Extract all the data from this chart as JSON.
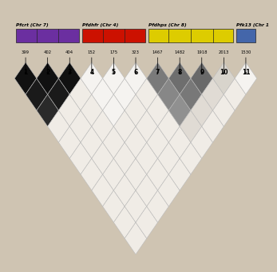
{
  "background_color": "#cfc4b2",
  "n_markers": 11,
  "marker_labels": [
    "1",
    "2",
    "3",
    "4",
    "5",
    "6",
    "7",
    "8",
    "9",
    "10",
    "11"
  ],
  "position_labels": [
    "399",
    "402",
    "404",
    "152",
    "175",
    "323",
    "1467",
    "1482",
    "1918",
    "2013",
    "1530"
  ],
  "genes": [
    {
      "name": "Pfcrt",
      "suffix": " (Chr 7)",
      "color": "#6b2fa0",
      "markers": [
        1,
        2,
        3
      ]
    },
    {
      "name": "Pfdhfr",
      "suffix": " (Chr 4)",
      "color": "#cc1100",
      "markers": [
        4,
        5,
        6
      ]
    },
    {
      "name": "Pfdhps",
      "suffix": " (Chr 8)",
      "color": "#ddcc00",
      "markers": [
        7,
        8,
        9,
        10
      ]
    },
    {
      "name": "Pfk13",
      "suffix": " (Chr 1",
      "color": "#4466aa",
      "markers": [
        11
      ]
    }
  ],
  "ld_colors": [
    [
      "#111111",
      "#1a1a1a",
      "#2a2a2a",
      "#f0ece6",
      "#f0ece6",
      "#f0ece6",
      "#f0ece6",
      "#f0ece6",
      "#f0ece6",
      "#f0ece6",
      "#f0ece6"
    ],
    [
      "#1a1a1a",
      "#111111",
      "#1a1a1a",
      "#f0ece6",
      "#f0ece6",
      "#f0ece6",
      "#f0ece6",
      "#f0ece6",
      "#f0ece6",
      "#f0ece6",
      "#f0ece6"
    ],
    [
      "#2a2a2a",
      "#1a1a1a",
      "#111111",
      "#f0ece6",
      "#f0ece6",
      "#f0ece6",
      "#f0ece6",
      "#f0ece6",
      "#f0ece6",
      "#f0ece6",
      "#f0ece6"
    ],
    [
      "#f0ece6",
      "#f0ece6",
      "#f0ece6",
      "#f5f3f0",
      "#f5f3f0",
      "#f5f3f0",
      "#f0ece6",
      "#f0ece6",
      "#f0ece6",
      "#f0ece6",
      "#f0ece6"
    ],
    [
      "#f0ece6",
      "#f0ece6",
      "#f0ece6",
      "#f5f3f0",
      "#f5f3f0",
      "#f5f3f0",
      "#f0ece6",
      "#f0ece6",
      "#f0ece6",
      "#f0ece6",
      "#f0ece6"
    ],
    [
      "#f0ece6",
      "#f0ece6",
      "#f0ece6",
      "#f5f3f0",
      "#f5f3f0",
      "#f5f3f0",
      "#f0ece6",
      "#f0ece6",
      "#f0ece6",
      "#f0ece6",
      "#f0ece6"
    ],
    [
      "#f0ece6",
      "#f0ece6",
      "#f0ece6",
      "#f0ece6",
      "#f0ece6",
      "#f0ece6",
      "#7a7a7a",
      "#878787",
      "#909090",
      "#e0dbd4",
      "#f0ece6"
    ],
    [
      "#f0ece6",
      "#f0ece6",
      "#f0ece6",
      "#f0ece6",
      "#f0ece6",
      "#f0ece6",
      "#878787",
      "#6e6e6e",
      "#787878",
      "#e0dbd4",
      "#f0ece6"
    ],
    [
      "#f0ece6",
      "#f0ece6",
      "#f0ece6",
      "#f0ece6",
      "#f0ece6",
      "#f0ece6",
      "#909090",
      "#787878",
      "#696969",
      "#e0dbd4",
      "#f0ece6"
    ],
    [
      "#f0ece6",
      "#f0ece6",
      "#f0ece6",
      "#f0ece6",
      "#f0ece6",
      "#f0ece6",
      "#e0dbd4",
      "#e0dbd4",
      "#e0dbd4",
      "#d8d4cc",
      "#f0ece6"
    ],
    [
      "#f0ece6",
      "#f0ece6",
      "#f0ece6",
      "#f0ece6",
      "#f0ece6",
      "#f0ece6",
      "#f0ece6",
      "#f0ece6",
      "#f0ece6",
      "#f0ece6",
      "#f5f3f0"
    ]
  ],
  "border_color": "#bbbbbb",
  "border_width": 0.4
}
